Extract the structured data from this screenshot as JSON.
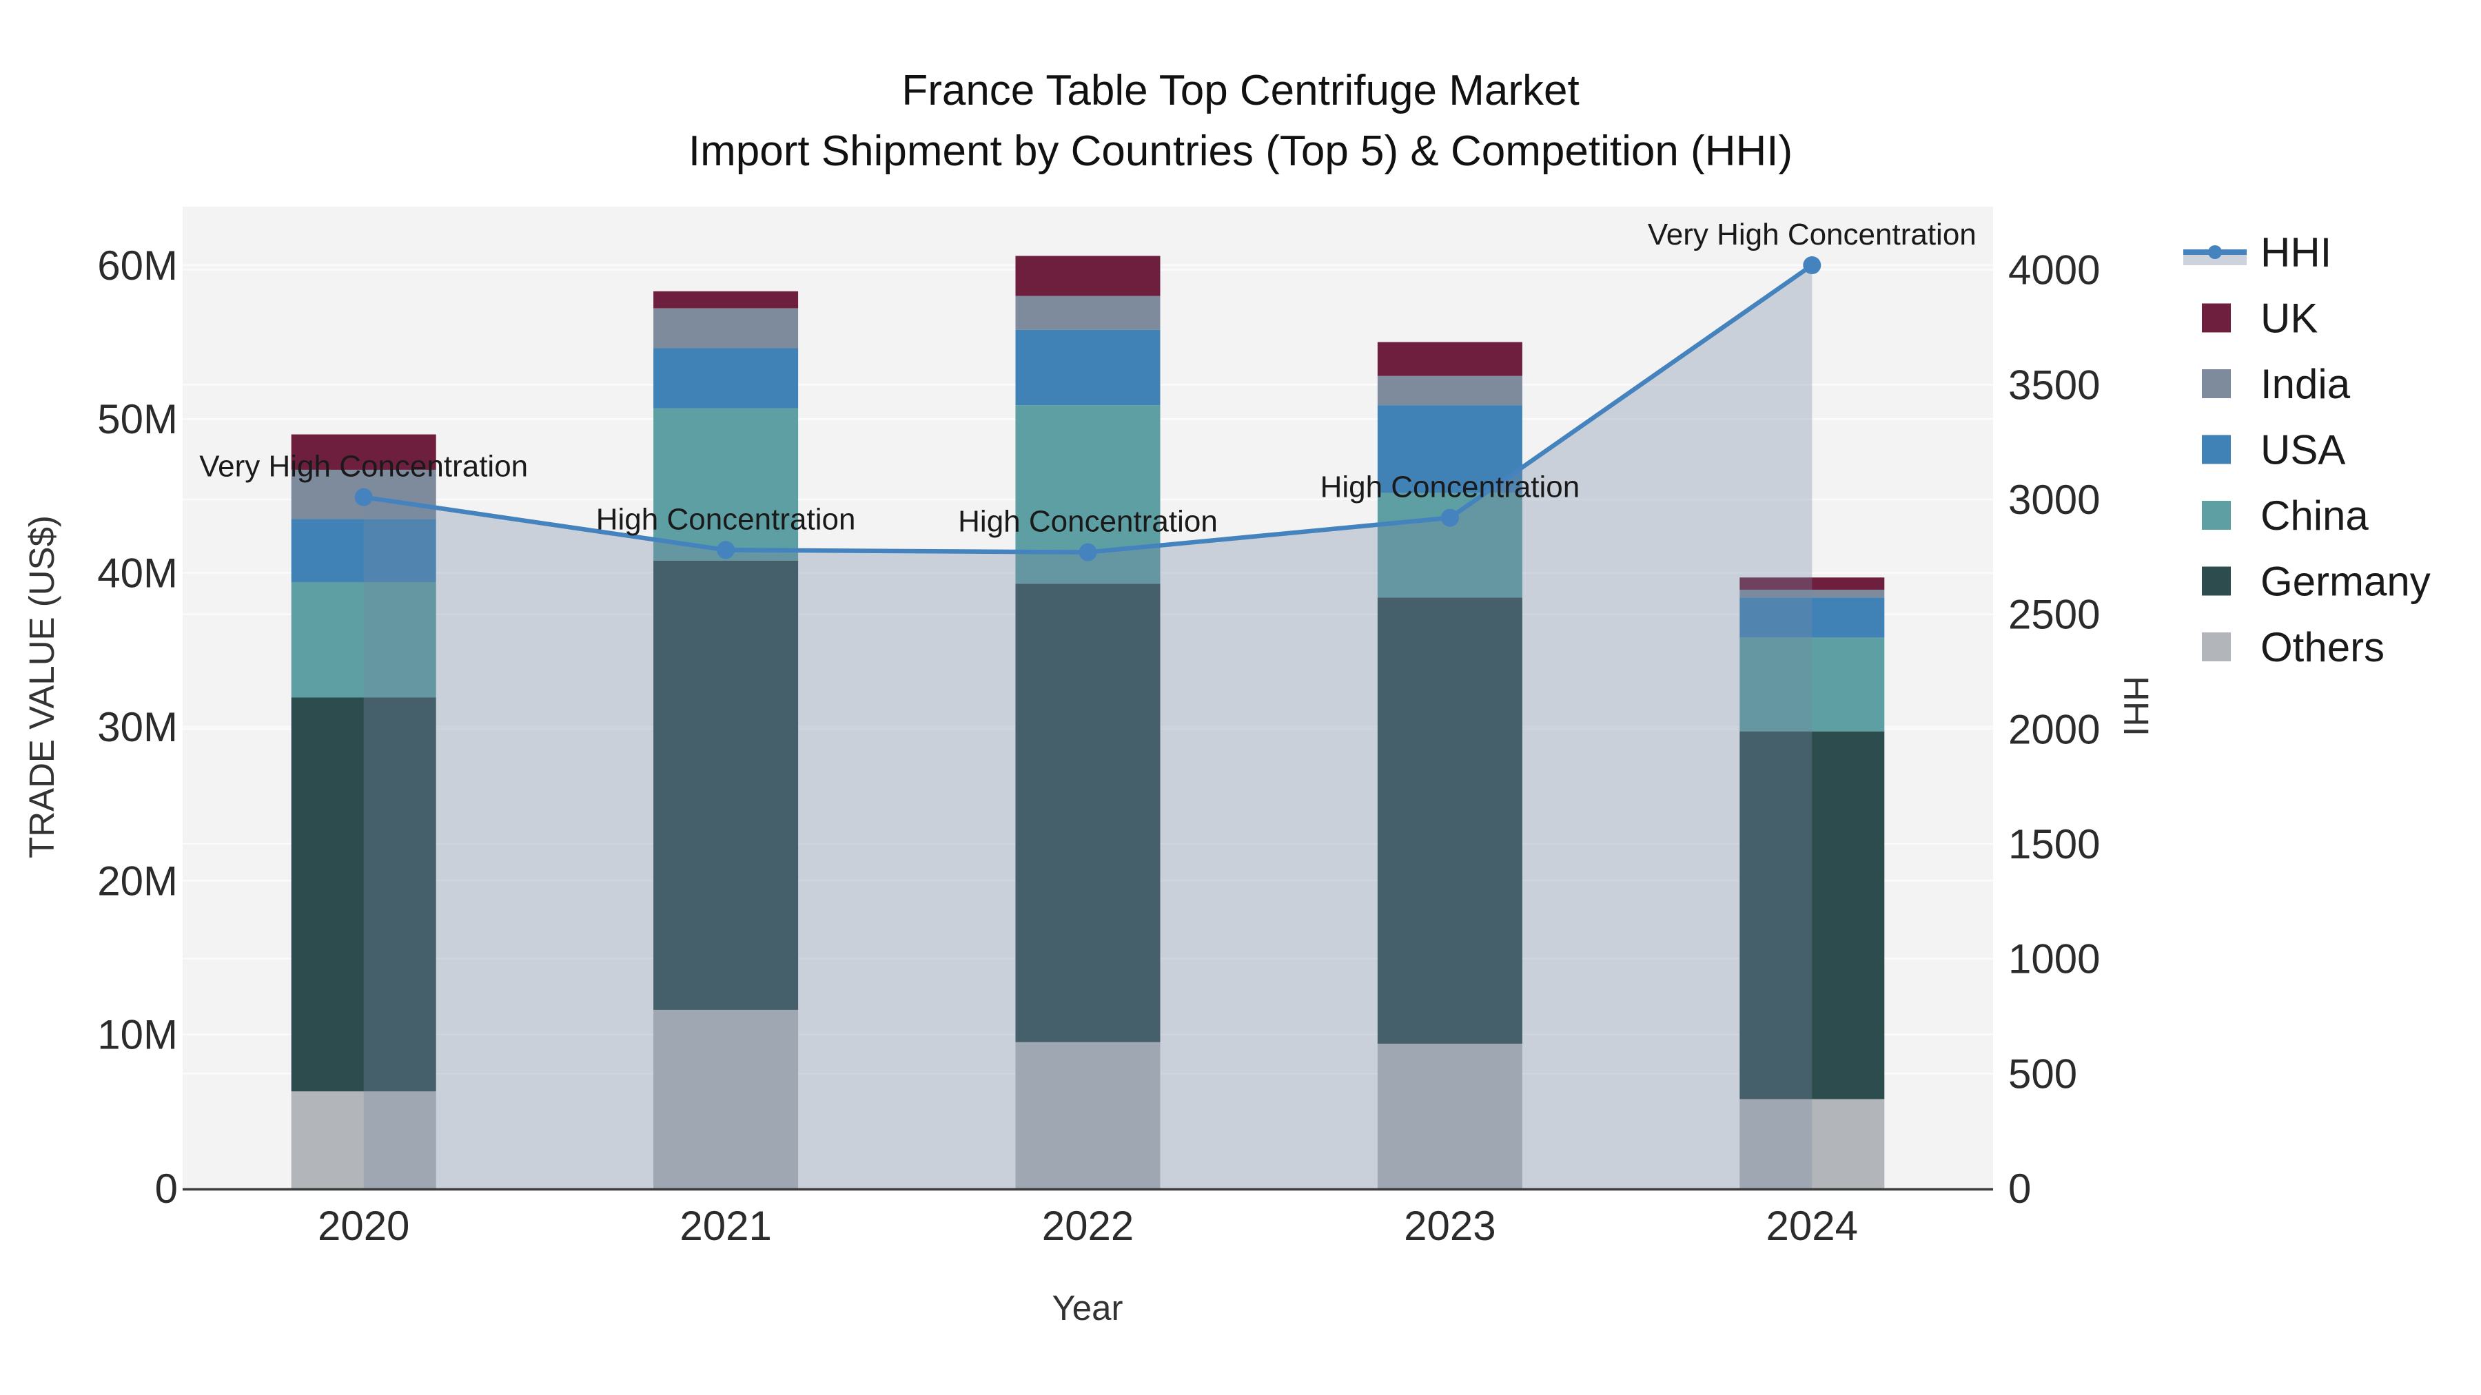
{
  "title": {
    "line1": "France Table Top Centrifuge Market",
    "line2": "Import Shipment by Countries (Top 5) & Competition (HHI)"
  },
  "chart_data": {
    "type": "bar",
    "subtype": "stacked-bars-with-secondary-axis-line",
    "title": "France Table Top Centrifuge Market — Import Shipment by Countries (Top 5) & Competition (HHI)",
    "categories": [
      "2020",
      "2021",
      "2022",
      "2023",
      "2024"
    ],
    "xlabel": "Year",
    "value_unit": "million US$",
    "series": [
      {
        "name": "UK",
        "color": "#6E1F3E",
        "values": [
          2.3,
          1.1,
          2.6,
          2.2,
          0.8
        ]
      },
      {
        "name": "India",
        "color": "#7D8B9D",
        "values": [
          3.2,
          2.6,
          2.2,
          1.9,
          0.5
        ]
      },
      {
        "name": "USA",
        "color": "#4182B6",
        "values": [
          4.1,
          3.9,
          4.9,
          5.7,
          2.6
        ]
      },
      {
        "name": "China",
        "color": "#5D9FA3",
        "values": [
          7.5,
          9.9,
          11.6,
          6.8,
          6.1
        ]
      },
      {
        "name": "Germany",
        "color": "#2D4C4E",
        "values": [
          25.6,
          29.2,
          29.8,
          29.0,
          23.9
        ]
      },
      {
        "name": "Others",
        "color": "#B2B6BA",
        "values": [
          6.3,
          11.6,
          9.5,
          9.4,
          5.8
        ]
      }
    ],
    "stack_order_bottom_to_top": [
      "Others",
      "Germany",
      "China",
      "USA",
      "India",
      "UK"
    ],
    "totals": [
      49.0,
      58.3,
      60.6,
      55.0,
      39.7
    ],
    "line_series": {
      "name": "HHI",
      "color": "#4583BE",
      "fill_color": "rgba(119,136,164,0.33)",
      "legend_band_color": "#CCD3DD",
      "axis": "right",
      "values": [
        3010,
        2780,
        2770,
        2920,
        4020
      ]
    },
    "annotations": [
      {
        "category": "2020",
        "text": "Very High Concentration"
      },
      {
        "category": "2021",
        "text": "High Concentration"
      },
      {
        "category": "2022",
        "text": "High Concentration"
      },
      {
        "category": "2023",
        "text": "High Concentration"
      },
      {
        "category": "2024",
        "text": "Very High Concentration"
      }
    ],
    "left_axis": {
      "title": "TRADE VALUE (US$)",
      "ticks": [
        {
          "v": 0,
          "label": "0"
        },
        {
          "v": 10,
          "label": "10M"
        },
        {
          "v": 20,
          "label": "20M"
        },
        {
          "v": 30,
          "label": "30M"
        },
        {
          "v": 40,
          "label": "40M"
        },
        {
          "v": 50,
          "label": "50M"
        },
        {
          "v": 60,
          "label": "60M"
        }
      ],
      "range": [
        0,
        63.8
      ]
    },
    "right_axis": {
      "title": "HHI",
      "ticks": [
        {
          "v": 0,
          "label": "0"
        },
        {
          "v": 500,
          "label": "500"
        },
        {
          "v": 1000,
          "label": "1000"
        },
        {
          "v": 1500,
          "label": "1500"
        },
        {
          "v": 2000,
          "label": "2000"
        },
        {
          "v": 2500,
          "label": "2500"
        },
        {
          "v": 3000,
          "label": "3000"
        },
        {
          "v": 3500,
          "label": "3500"
        },
        {
          "v": 4000,
          "label": "4000"
        }
      ],
      "range": [
        0,
        4275
      ]
    },
    "legend_position": "right",
    "grid": true,
    "colors": {
      "plot_background": "#F3F3F4",
      "gridline": "#FBFBFC",
      "axis_line": "#3B3B3B"
    }
  }
}
